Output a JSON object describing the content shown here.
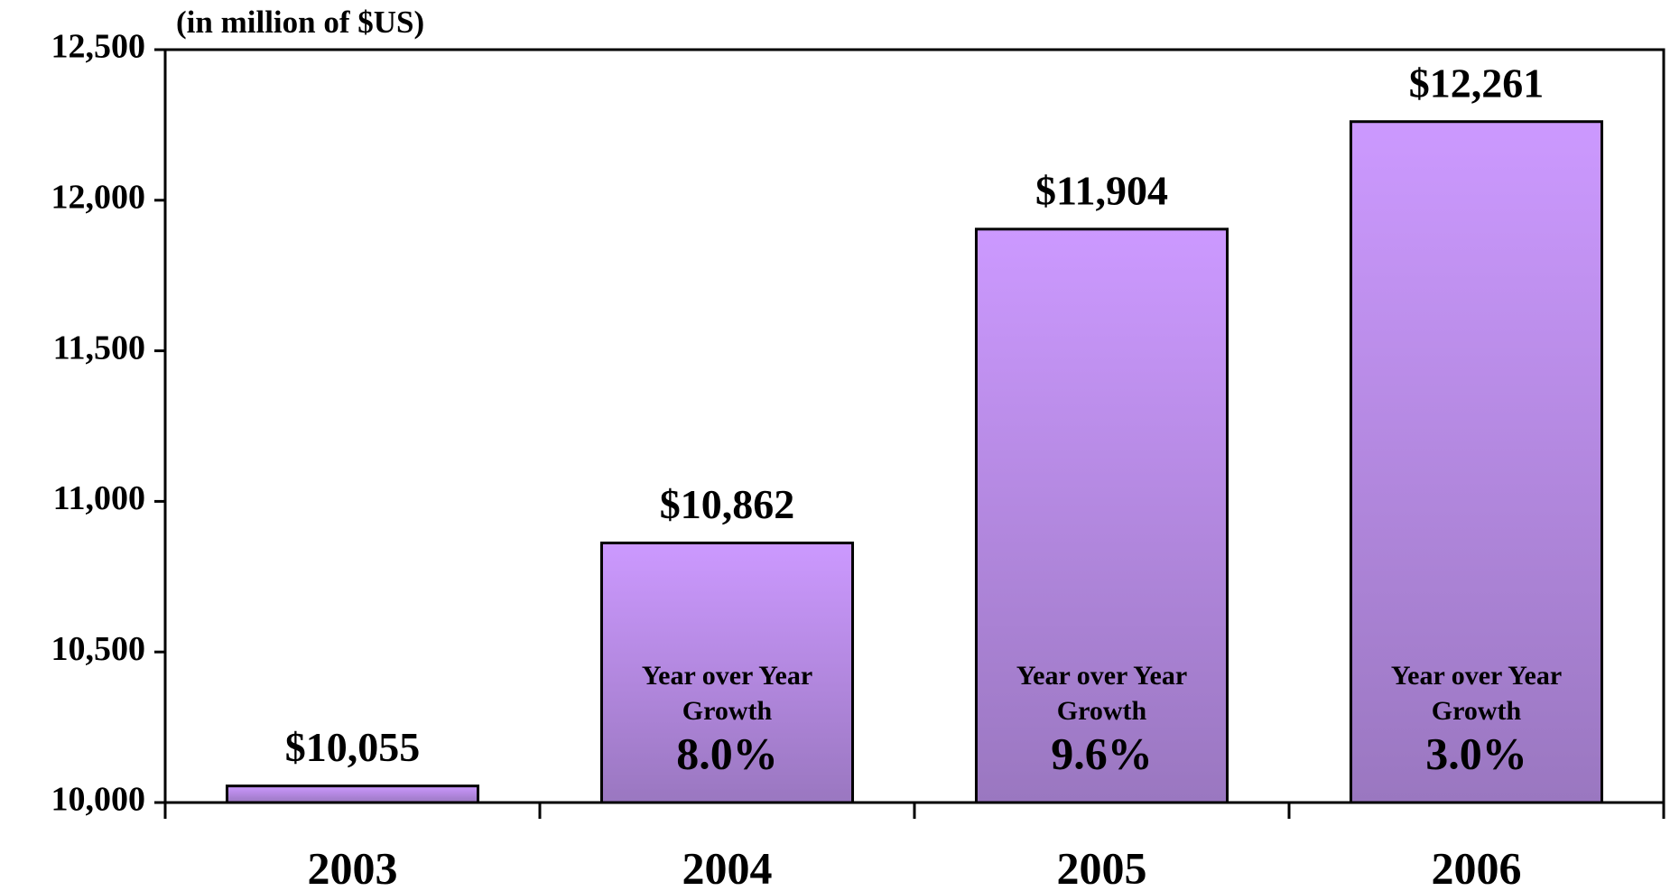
{
  "chart_data": {
    "type": "bar",
    "y_label": "(in million of $US)",
    "categories": [
      "2003",
      "2004",
      "2005",
      "2006"
    ],
    "values": [
      10055,
      10862,
      11904,
      12261
    ],
    "value_labels": [
      "$10,055",
      "$10,862",
      "$11,904",
      "$12,261"
    ],
    "growth_title": [
      "Year over Year",
      "Growth"
    ],
    "growth_labels": [
      null,
      "8.0%",
      "9.6%",
      "3.0%"
    ],
    "color": "#c993ff",
    "ylim": [
      10000,
      12500
    ],
    "yticks": [
      {
        "value": 10000,
        "label": "10,000"
      },
      {
        "value": 10500,
        "label": "10,500"
      },
      {
        "value": 11000,
        "label": "11,000"
      },
      {
        "value": 11500,
        "label": "11,500"
      },
      {
        "value": 12000,
        "label": "12,000"
      },
      {
        "value": 12500,
        "label": "12,500"
      }
    ],
    "grid": false
  }
}
